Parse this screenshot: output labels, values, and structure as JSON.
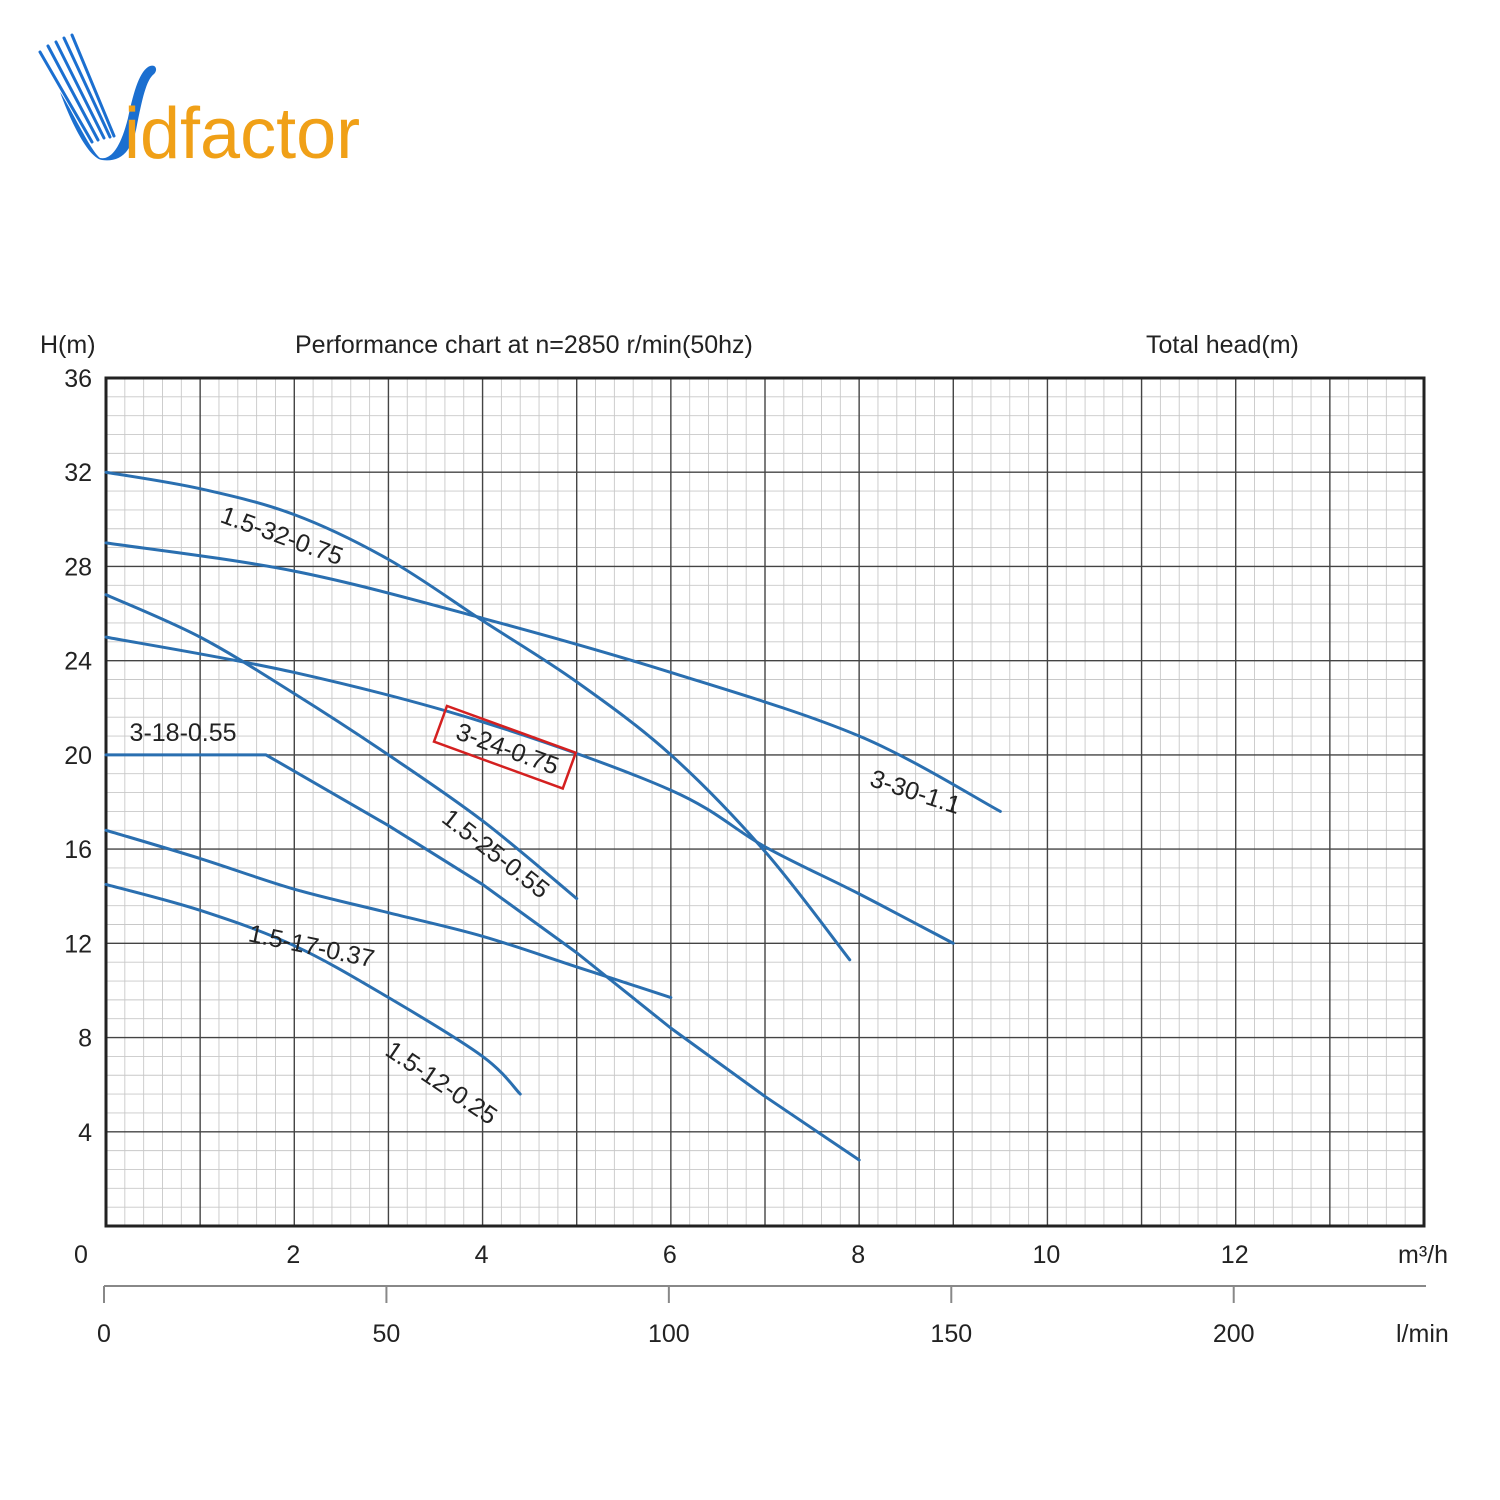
{
  "brand": {
    "name": "Vidfactor",
    "wordmark": "idfactor",
    "colors": {
      "primary_blue": "#1b6fd0",
      "accent_orange": "#f0a017"
    }
  },
  "chart_data": {
    "type": "line",
    "title": "Performance chart at n=2850 r/min(50hz)",
    "ylabel": "H(m)",
    "ylabel_right": "Total head(m)",
    "xlabel": "m³/h",
    "x2label": "l/min",
    "xlim": [
      0,
      14
    ],
    "ylim": [
      0,
      36
    ],
    "x_ticks": [
      "0",
      "2",
      "4",
      "6",
      "8",
      "10",
      "12"
    ],
    "x_tick_values": [
      0,
      2,
      4,
      6,
      8,
      10,
      12
    ],
    "y_ticks": [
      "4",
      "8",
      "12",
      "16",
      "20",
      "24",
      "28",
      "32",
      "36"
    ],
    "y_tick_values": [
      4,
      8,
      12,
      16,
      20,
      24,
      28,
      32,
      36
    ],
    "x2_ticks": [
      "0",
      "50",
      "100",
      "150",
      "200"
    ],
    "x2_tick_values": [
      0,
      50,
      100,
      150,
      200
    ],
    "grid": true,
    "line_color": "#2a6fb0",
    "highlight_color": "#d42020",
    "highlighted_series": "3-24-0.75",
    "series": [
      {
        "name": "1.5-32-0.75",
        "x": [
          0,
          1,
          2,
          3,
          4,
          5,
          6,
          7,
          7.9
        ],
        "y": [
          32,
          31.3,
          30.2,
          28.3,
          25.7,
          23.1,
          20,
          15.9,
          11.3
        ],
        "label_x": 1.2,
        "label_y": 29.9,
        "label_angle": 20
      },
      {
        "name": "3-30-1.1",
        "x": [
          0,
          2,
          4,
          6,
          8,
          9.5
        ],
        "y": [
          29,
          27.8,
          25.8,
          23.5,
          20.8,
          17.6
        ],
        "label_x": 8.1,
        "label_y": 18.7,
        "label_angle": 18
      },
      {
        "name": "1.5-25-0.55",
        "x": [
          0,
          1,
          2,
          3,
          4,
          5
        ],
        "y": [
          26.8,
          25,
          22.6,
          20,
          17.2,
          13.9
        ],
        "label_x": 3.55,
        "label_y": 17.2,
        "label_angle": 38
      },
      {
        "name": "3-24-0.75",
        "x": [
          0,
          2,
          4,
          6,
          7,
          8,
          9
        ],
        "y": [
          25,
          23.5,
          21.4,
          18.5,
          16.1,
          14.1,
          12
        ],
        "label_x": 3.7,
        "label_y": 20.7,
        "label_angle": 20
      },
      {
        "name": "3-18-0.55",
        "x": [
          0,
          1.7,
          3,
          4,
          5,
          6,
          7,
          8
        ],
        "y": [
          20,
          20,
          17,
          14.5,
          11.6,
          8.4,
          5.5,
          2.8
        ],
        "label_x": 0.25,
        "label_y": 20.6,
        "label_angle": 0
      },
      {
        "name": "1.5-17-0.37",
        "x": [
          0,
          1,
          2,
          3,
          4,
          5,
          6
        ],
        "y": [
          16.8,
          15.6,
          14.3,
          13.3,
          12.3,
          11,
          9.7
        ],
        "label_x": 1.5,
        "label_y": 12.1,
        "label_angle": 12
      },
      {
        "name": "1.5-12-0.25",
        "x": [
          0,
          1,
          2,
          3,
          4,
          4.4
        ],
        "y": [
          14.5,
          13.4,
          11.9,
          9.7,
          7.2,
          5.6
        ],
        "label_x": 2.95,
        "label_y": 7.3,
        "label_angle": 34
      }
    ]
  }
}
